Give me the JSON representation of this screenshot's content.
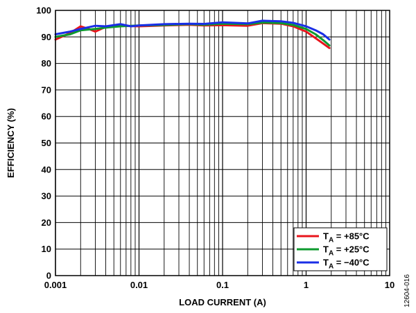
{
  "chart_data": {
    "type": "line",
    "title": "",
    "xlabel": "LOAD CURRENT (A)",
    "ylabel": "EFFICIENCY (%)",
    "x_scale": "log",
    "xlim": [
      0.001,
      10
    ],
    "ylim": [
      0,
      100
    ],
    "x_ticks": [
      0.001,
      0.01,
      0.1,
      1,
      10
    ],
    "x_tick_labels": [
      "0.001",
      "0.01",
      "0.1",
      "1",
      "10"
    ],
    "y_ticks": [
      0,
      10,
      20,
      30,
      40,
      50,
      60,
      70,
      80,
      90,
      100
    ],
    "y_tick_labels": [
      "0",
      "10",
      "20",
      "30",
      "40",
      "50",
      "60",
      "70",
      "80",
      "90",
      "100"
    ],
    "grid": true,
    "legend_position": "bottom-right",
    "series": [
      {
        "name": "+85°C",
        "color": "#e8141c",
        "points": [
          [
            0.001,
            89
          ],
          [
            0.0015,
            91.5
          ],
          [
            0.002,
            94
          ],
          [
            0.0025,
            93
          ],
          [
            0.003,
            92
          ],
          [
            0.004,
            93.8
          ],
          [
            0.006,
            94.2
          ],
          [
            0.01,
            94
          ],
          [
            0.02,
            94.3
          ],
          [
            0.04,
            94.6
          ],
          [
            0.06,
            94.3
          ],
          [
            0.1,
            94.4
          ],
          [
            0.2,
            94.2
          ],
          [
            0.3,
            95.2
          ],
          [
            0.5,
            95
          ],
          [
            0.7,
            94
          ],
          [
            1,
            92
          ],
          [
            1.3,
            89.5
          ],
          [
            1.6,
            87.5
          ],
          [
            1.9,
            85.8
          ]
        ]
      },
      {
        "name": "+25°C",
        "color": "#0d9a2e",
        "points": [
          [
            0.001,
            90
          ],
          [
            0.0015,
            91
          ],
          [
            0.002,
            92.5
          ],
          [
            0.003,
            93
          ],
          [
            0.004,
            93.5
          ],
          [
            0.006,
            94
          ],
          [
            0.01,
            94.3
          ],
          [
            0.02,
            94.5
          ],
          [
            0.04,
            94.8
          ],
          [
            0.06,
            94.6
          ],
          [
            0.1,
            95
          ],
          [
            0.2,
            94.8
          ],
          [
            0.3,
            95.4
          ],
          [
            0.5,
            95.2
          ],
          [
            0.7,
            94.5
          ],
          [
            1,
            93
          ],
          [
            1.3,
            91
          ],
          [
            1.6,
            88.8
          ],
          [
            1.9,
            86.8
          ]
        ]
      },
      {
        "name": "−40°C",
        "color": "#1a2ee6",
        "points": [
          [
            0.001,
            91
          ],
          [
            0.0015,
            92
          ],
          [
            0.002,
            93
          ],
          [
            0.003,
            94.2
          ],
          [
            0.004,
            94
          ],
          [
            0.006,
            94.8
          ],
          [
            0.008,
            94
          ],
          [
            0.01,
            94.3
          ],
          [
            0.02,
            94.8
          ],
          [
            0.04,
            95
          ],
          [
            0.06,
            94.9
          ],
          [
            0.1,
            95.5
          ],
          [
            0.2,
            95.1
          ],
          [
            0.3,
            96.1
          ],
          [
            0.5,
            95.9
          ],
          [
            0.7,
            95.3
          ],
          [
            1,
            94
          ],
          [
            1.3,
            92.5
          ],
          [
            1.6,
            91
          ],
          [
            1.9,
            89
          ]
        ]
      }
    ]
  },
  "legend": {
    "entries": [
      {
        "prefix": "T",
        "sub": "A",
        "value": " = +85°C"
      },
      {
        "prefix": "T",
        "sub": "A",
        "value": " = +25°C"
      },
      {
        "prefix": "T",
        "sub": "A",
        "value": " = −40°C"
      }
    ]
  },
  "figure_id": "12604-016"
}
